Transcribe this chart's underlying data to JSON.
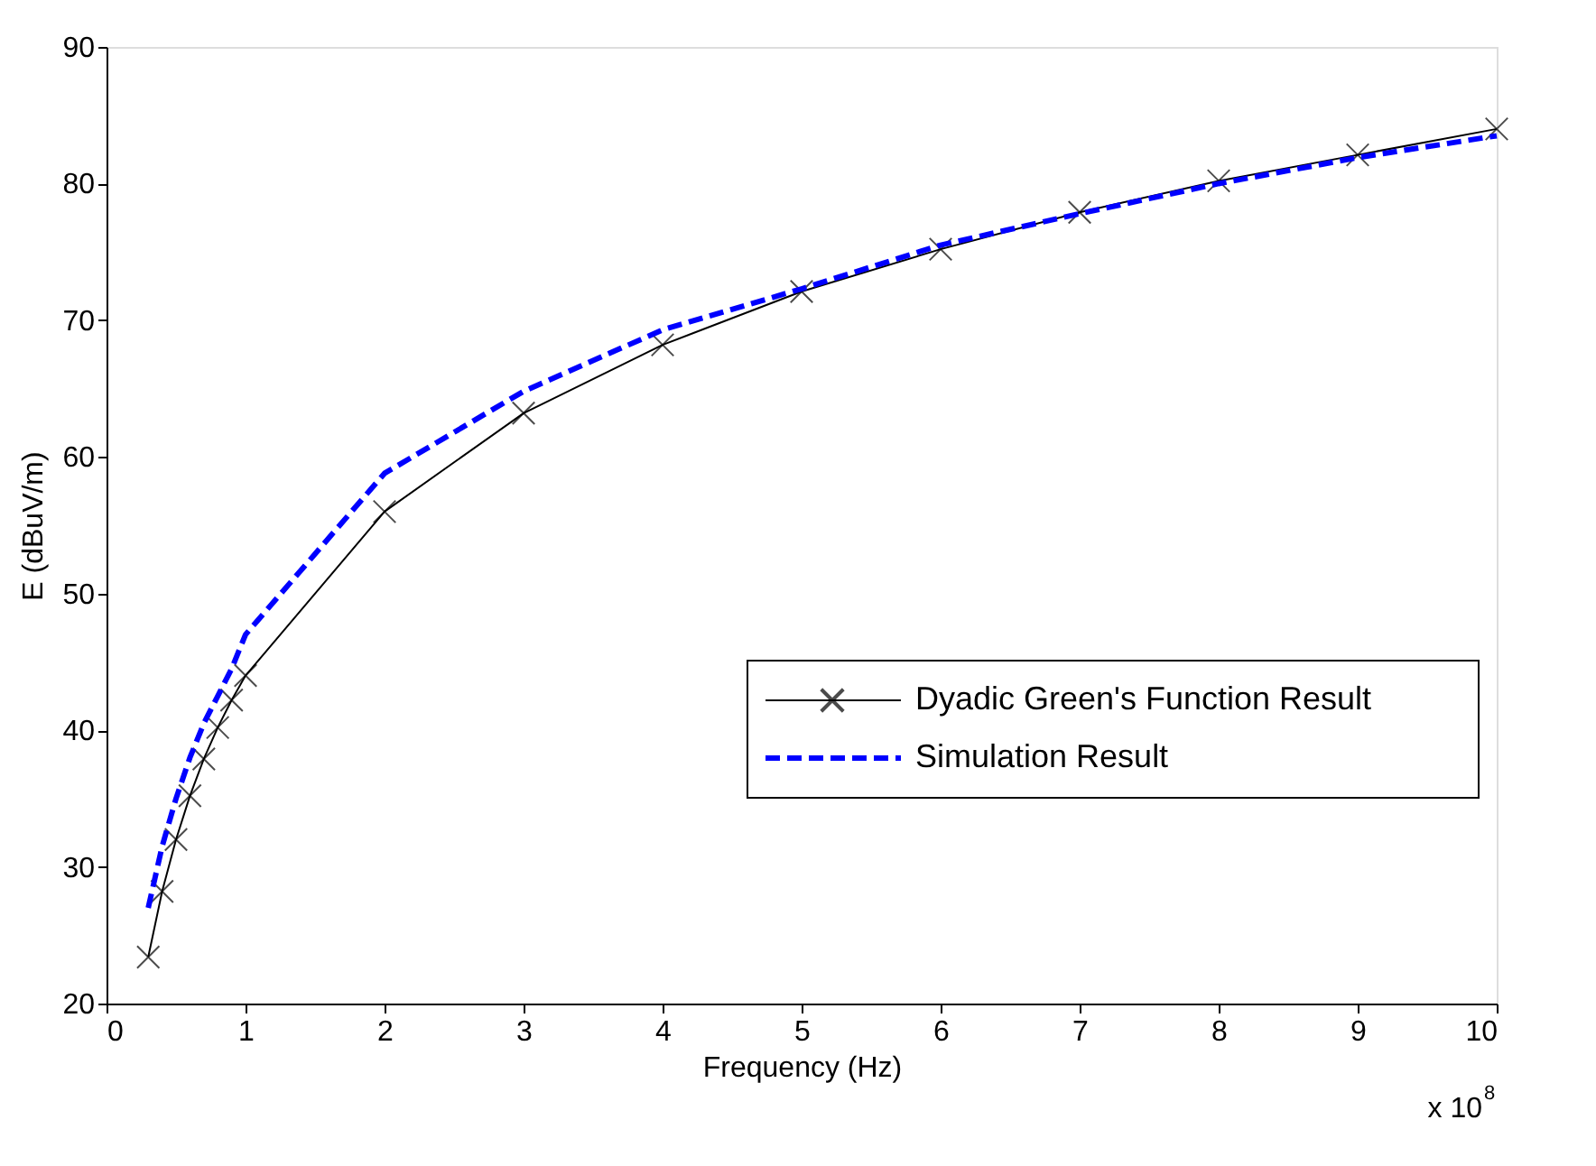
{
  "chart_data": {
    "type": "line",
    "xlabel": "Frequency (Hz)",
    "ylabel": "E (dBuV/m)",
    "x": [
      0.3,
      0.4,
      0.5,
      0.6,
      0.7,
      0.8,
      0.9,
      1,
      2,
      3,
      4,
      5,
      6,
      7,
      8,
      9,
      10
    ],
    "series": [
      {
        "name": "Dyadic Green's Function Result",
        "color": "#000000",
        "marker": "cross",
        "line_style": "solid",
        "values": [
          23.4,
          28.2,
          32,
          35.2,
          37.9,
          40.2,
          42.2,
          44,
          56,
          63.2,
          68.2,
          72.1,
          75.2,
          77.9,
          80.2,
          82.1,
          84
        ]
      },
      {
        "name": "Simulation Result",
        "color": "#0000ff",
        "marker": "none",
        "line_style": "dashed",
        "values": [
          27,
          31.5,
          35,
          38,
          40.5,
          42.5,
          44.5,
          47,
          58.8,
          64.8,
          69.3,
          72.3,
          75.5,
          77.8,
          80,
          81.9,
          83.5
        ]
      }
    ],
    "xlim": [
      0,
      10
    ],
    "xticks": [
      0,
      1,
      2,
      3,
      4,
      5,
      6,
      7,
      8,
      9,
      10
    ],
    "ylim": [
      20,
      90
    ],
    "yticks": [
      20,
      30,
      40,
      50,
      60,
      70,
      80,
      90
    ],
    "grid": false,
    "legend": "right",
    "annotations": [
      "x 10$^{8}$"
    ]
  }
}
